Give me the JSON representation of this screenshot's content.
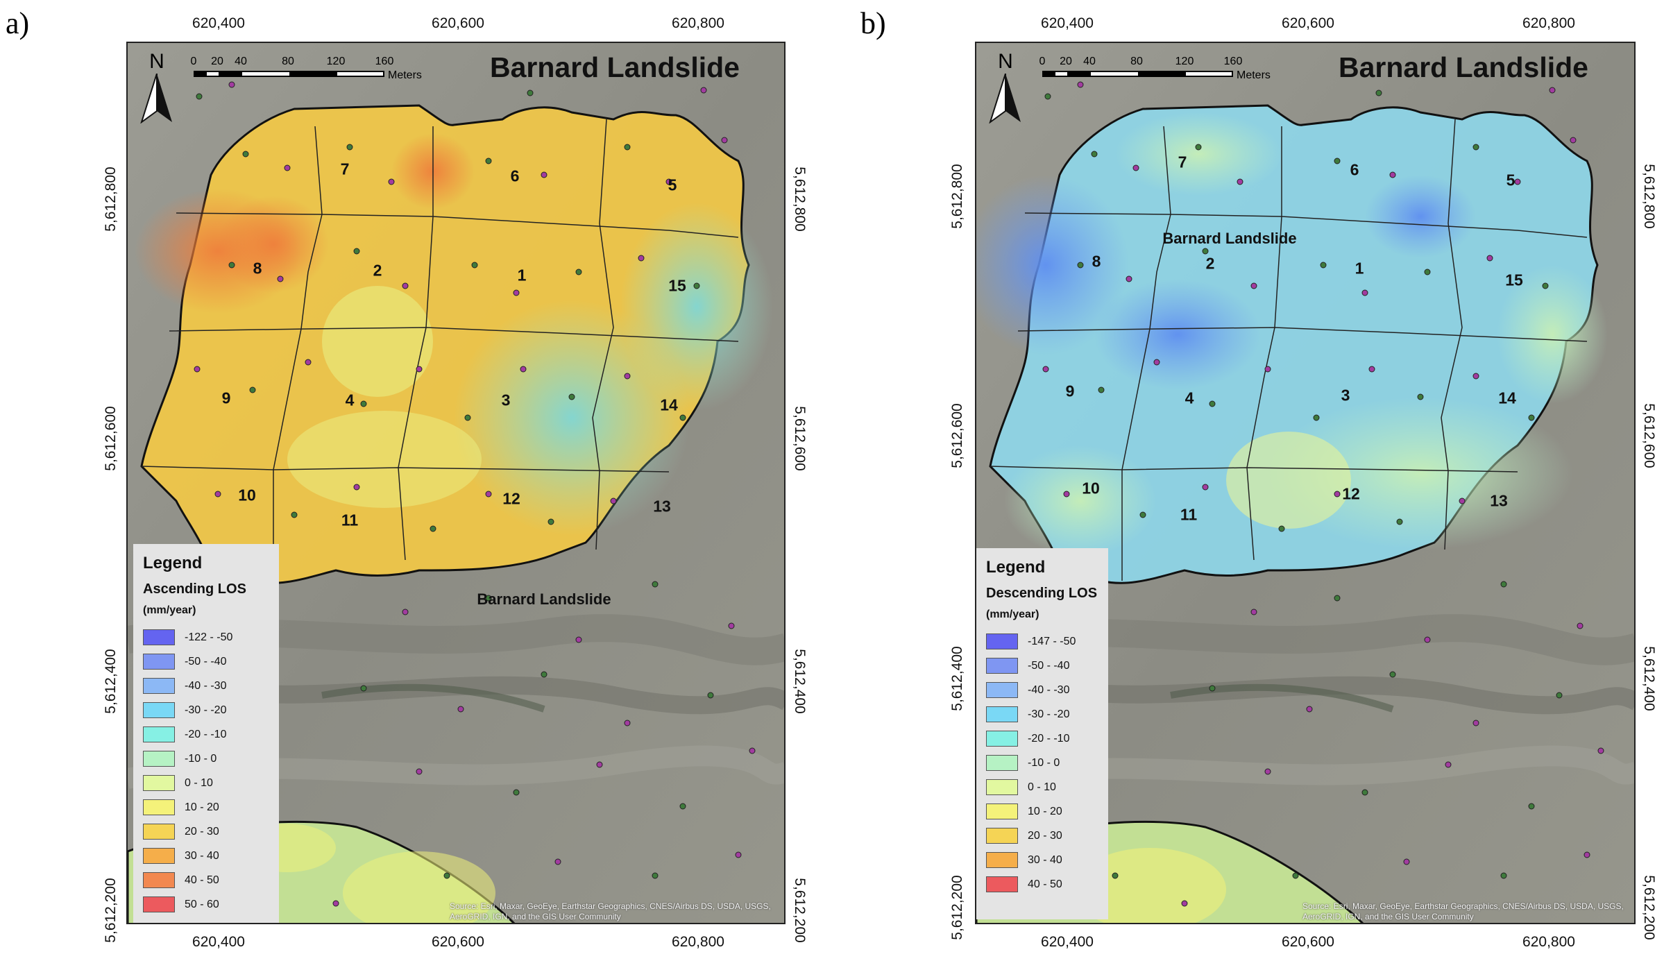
{
  "panels": [
    {
      "id": "a",
      "panel_label": "a)",
      "map_title": "Barnard Landslide",
      "inner_label": "Barnard Landslide",
      "north_label": "N",
      "scale": {
        "ticks": [
          "0",
          "20",
          "40",
          "80",
          "120",
          "160"
        ],
        "unit": "Meters"
      },
      "x_ticks": [
        "620,400",
        "620,600",
        "620,800"
      ],
      "y_ticks": [
        "5,612,800",
        "5,612,600",
        "5,612,400",
        "5,612,200"
      ],
      "legend": {
        "title": "Legend",
        "subtitle": "Ascending LOS",
        "unit": "(mm/year)",
        "classes": [
          {
            "label": "-122 - -50",
            "color": "#6464f0"
          },
          {
            "label": "-50 - -40",
            "color": "#7f96f2"
          },
          {
            "label": "-40 - -30",
            "color": "#8cb8f5"
          },
          {
            "label": "-30 - -20",
            "color": "#7ad8f5"
          },
          {
            "label": "-20 - -10",
            "color": "#86f0e4"
          },
          {
            "label": "-10 - 0",
            "color": "#b6f2c4"
          },
          {
            "label": "0 - 10",
            "color": "#e2f8a0"
          },
          {
            "label": "10 - 20",
            "color": "#f4f27a"
          },
          {
            "label": "20 - 30",
            "color": "#f5d455"
          },
          {
            "label": "30 - 40",
            "color": "#f5ae4a"
          },
          {
            "label": "40 - 50",
            "color": "#f28850"
          },
          {
            "label": "50 - 60",
            "color": "#ec5a5e"
          }
        ]
      },
      "subareas": [
        "1",
        "2",
        "3",
        "4",
        "5",
        "6",
        "7",
        "8",
        "9",
        "10",
        "11",
        "12",
        "13",
        "14",
        "15"
      ],
      "credits": "Source: Esri, Maxar, GeoEye, Earthstar Geographics, CNES/Airbus DS, USDA, USGS, AeroGRID, IGN, and the GIS User Community"
    },
    {
      "id": "b",
      "panel_label": "b)",
      "map_title": "Barnard Landslide",
      "inner_label": "Barnard Landslide",
      "north_label": "N",
      "scale": {
        "ticks": [
          "0",
          "20",
          "40",
          "80",
          "120",
          "160"
        ],
        "unit": "Meters"
      },
      "x_ticks": [
        "620,400",
        "620,600",
        "620,800"
      ],
      "y_ticks": [
        "5,612,800",
        "5,612,600",
        "5,612,400",
        "5,612,200"
      ],
      "legend": {
        "title": "Legend",
        "subtitle": "Descending LOS",
        "unit": "(mm/year)",
        "classes": [
          {
            "label": "-147 - -50",
            "color": "#6464f0"
          },
          {
            "label": "-50 - -40",
            "color": "#7f96f2"
          },
          {
            "label": "-40 - -30",
            "color": "#8cb8f5"
          },
          {
            "label": "-30 - -20",
            "color": "#7ad8f5"
          },
          {
            "label": "-20 - -10",
            "color": "#86f0e4"
          },
          {
            "label": "-10 - 0",
            "color": "#b6f2c4"
          },
          {
            "label": "0 - 10",
            "color": "#e2f8a0"
          },
          {
            "label": "10 - 20",
            "color": "#f4f27a"
          },
          {
            "label": "20 - 30",
            "color": "#f5d455"
          },
          {
            "label": "30 - 40",
            "color": "#f5ae4a"
          },
          {
            "label": "40 - 50",
            "color": "#ec5a5e"
          }
        ]
      },
      "subareas": [
        "1",
        "2",
        "3",
        "4",
        "5",
        "6",
        "7",
        "8",
        "9",
        "10",
        "11",
        "12",
        "13",
        "14",
        "15"
      ],
      "credits": "Source: Esri, Maxar, GeoEye, Earthstar Geographics, CNES/Airbus DS, USDA, USGS, AeroGRID, IGN, and the GIS User Community"
    }
  ],
  "colors": {
    "ground": "#8e8e86",
    "point_purple": "#a23ca0",
    "point_green": "#3f7a3c",
    "ascending_fill": "#f2c846",
    "ascending_hot": "#ef9a45",
    "ascending_cool": "#cdeaa8",
    "descending_fill": "#8ed6e8",
    "descending_blue": "#6f9ff0",
    "descending_green": "#b8ecc8"
  }
}
